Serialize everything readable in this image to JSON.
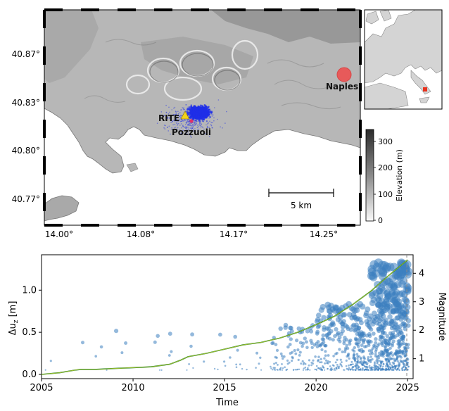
{
  "map": {
    "lat_ticks": [
      "40.87°",
      "40.83°",
      "40.80°",
      "40.77°"
    ],
    "lon_ticks": [
      "14.00°",
      "14.08°",
      "14.17°",
      "14.25°"
    ],
    "labels": {
      "station": "RITE",
      "town": "Pozzuoli",
      "city": "Naples"
    },
    "scale_bar": "5 km",
    "colorbar": {
      "label": "Elevation (m)",
      "ticks": [
        "300",
        "200",
        "100",
        "0"
      ],
      "range": [
        0,
        350
      ]
    },
    "colors": {
      "seismicity": "#1f2fe8",
      "naples_marker": "#f04a4a",
      "station": "#f2d31b",
      "inset_marker": "#e8321e"
    }
  },
  "chart_data": {
    "type": "scatter",
    "xlabel": "Time",
    "ylabel_left": "Δu_z [m]",
    "ylabel_right": "Magnitude",
    "xlim": [
      2005,
      2025.3
    ],
    "ylim_left": [
      -0.05,
      1.42
    ],
    "ylim_right": [
      0.3,
      4.65
    ],
    "x_ticks": [
      "2005",
      "2010",
      "2015",
      "2020",
      "2025"
    ],
    "y_ticks_left": [
      "0.0",
      "0.5",
      "1.0"
    ],
    "y_ticks_right": [
      "1",
      "2",
      "3",
      "4"
    ],
    "series": [
      {
        "kind": "line",
        "color": "#1d7d1d",
        "x": [
          2005.0,
          2006.0,
          2006.8,
          2007.2,
          2008.0,
          2009.0,
          2010.0,
          2011.0,
          2012.0,
          2012.6,
          2013.0,
          2014.0,
          2015.0,
          2016.0,
          2017.0,
          2018.0,
          2019.0,
          2020.0,
          2021.0,
          2022.0,
          2023.0,
          2024.0,
          2025.0
        ],
        "values": [
          0.0,
          0.02,
          0.05,
          0.06,
          0.06,
          0.07,
          0.08,
          0.09,
          0.12,
          0.17,
          0.21,
          0.25,
          0.3,
          0.35,
          0.38,
          0.43,
          0.5,
          0.59,
          0.69,
          0.83,
          0.99,
          1.18,
          1.36
        ]
      },
      {
        "kind": "scatter",
        "color": "#3d7fc0",
        "axis": "right",
        "note_values": "magnitudes of seismic events"
      }
    ]
  },
  "inset": {
    "marker_color": "#e8321e"
  }
}
